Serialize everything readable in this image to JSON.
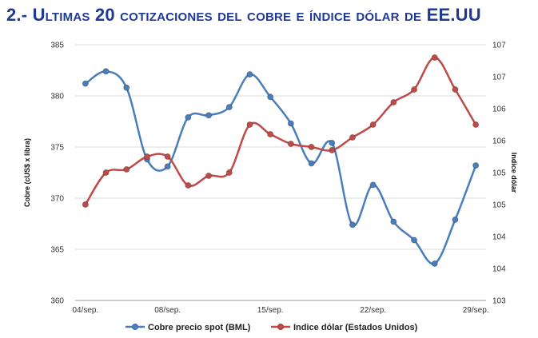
{
  "page": {
    "title": "2.- Ultimas 20 cotizaciones del cobre e índice dólar de EE.UU"
  },
  "chart_data": {
    "type": "line",
    "title": "",
    "x_tick_labels": [
      "04/sep.",
      "08/sep.",
      "15/sep.",
      "22/sep.",
      "29/sep."
    ],
    "x_tick_indices": [
      0,
      4,
      9,
      14,
      19
    ],
    "x_count": 20,
    "left_axis": {
      "label": "Cobre (cUS$ x libra)",
      "ylim": [
        360,
        385
      ],
      "ticks": [
        "360",
        "365",
        "370",
        "375",
        "380",
        "385"
      ]
    },
    "right_axis": {
      "label": "Indice dólar",
      "ylim": [
        103,
        107
      ],
      "tick_values": [
        103,
        103.5,
        104,
        104.5,
        105,
        105.5,
        106,
        106.5,
        107
      ],
      "tick_labels": [
        "103",
        "104",
        "104",
        "105",
        "105",
        "106",
        "106",
        "107",
        "107"
      ]
    },
    "grid": "horizontal",
    "legend_position": "bottom",
    "series": [
      {
        "name": "Cobre precio spot (BML)",
        "axis": "left",
        "color": "#4a7ebb",
        "values": [
          381.2,
          382.4,
          380.8,
          373.8,
          373.1,
          377.9,
          378.1,
          378.9,
          382.1,
          379.9,
          377.3,
          373.4,
          375.4,
          367.4,
          371.3,
          367.7,
          365.9,
          363.6,
          367.9,
          373.2
        ]
      },
      {
        "name": "Indice dólar (Estados Unidos)",
        "axis": "right",
        "color": "#be4b48",
        "values": [
          104.5,
          105.0,
          105.05,
          105.25,
          105.25,
          104.8,
          104.95,
          105.0,
          105.75,
          105.6,
          105.45,
          105.4,
          105.35,
          105.55,
          105.75,
          106.1,
          106.3,
          106.8,
          106.3,
          105.75
        ]
      }
    ]
  }
}
